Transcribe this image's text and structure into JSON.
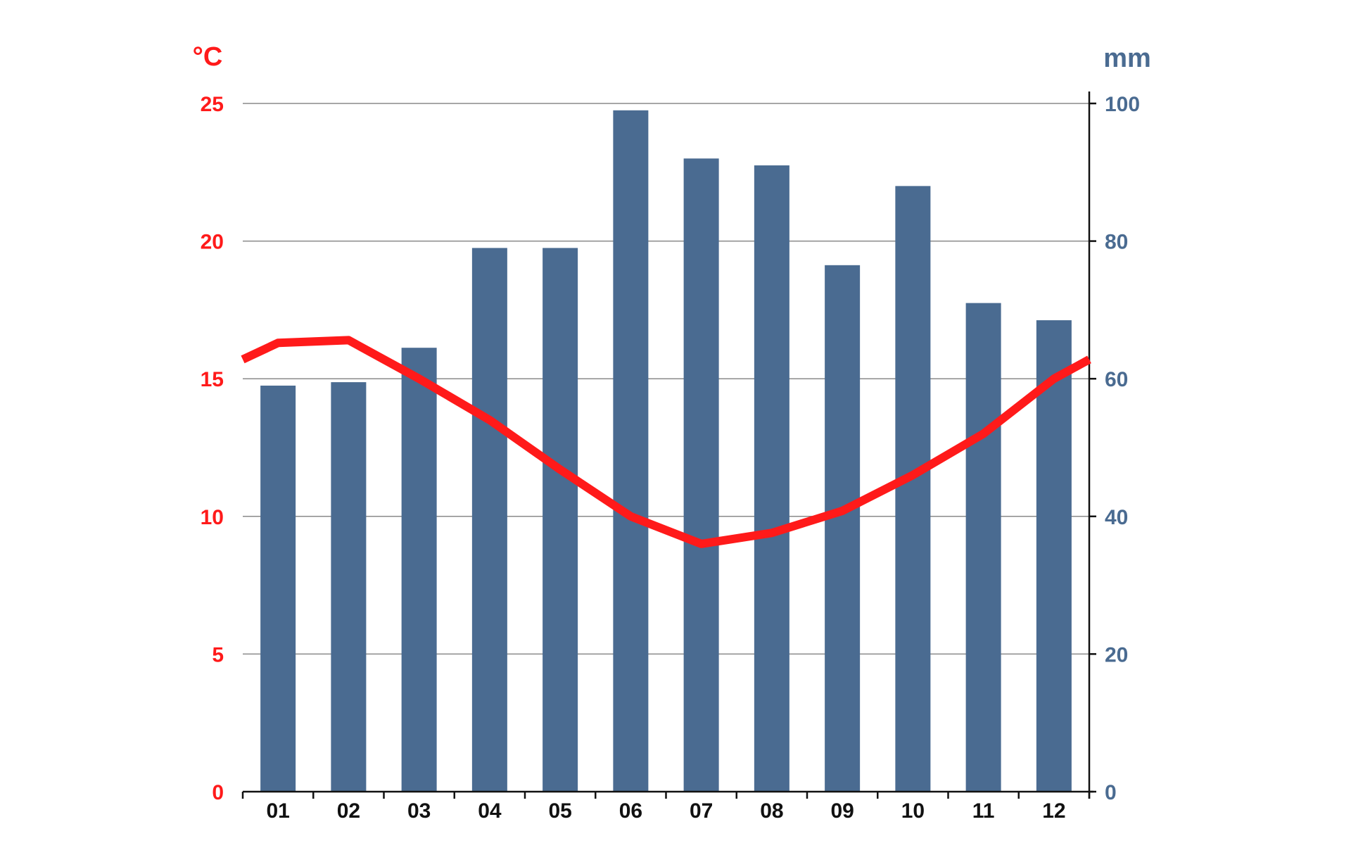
{
  "chart_data": {
    "type": "bar+line",
    "categories": [
      "01",
      "02",
      "03",
      "04",
      "05",
      "06",
      "07",
      "08",
      "09",
      "10",
      "11",
      "12"
    ],
    "series": [
      {
        "type": "bar",
        "axis": "right",
        "values": [
          59,
          59.5,
          64.5,
          79,
          79,
          99,
          92,
          91,
          76.5,
          88,
          71,
          68.5
        ],
        "color": "#4a6b91"
      },
      {
        "type": "line",
        "axis": "left",
        "values": [
          16.3,
          16.4,
          15.0,
          13.5,
          11.7,
          10.0,
          9.0,
          9.4,
          10.2,
          11.5,
          13.0,
          15.0
        ],
        "start_value": 15.7,
        "end_value": 15.7,
        "color": "#ff1a1a"
      }
    ],
    "y_left": {
      "label": "°C",
      "ticks": [
        "0",
        "5",
        "10",
        "15",
        "20",
        "25"
      ],
      "range": [
        0,
        25
      ],
      "color": "#ff1a1a"
    },
    "y_right": {
      "label": "mm",
      "ticks": [
        "0",
        "20",
        "40",
        "60",
        "80",
        "100"
      ],
      "range": [
        0,
        100
      ],
      "color": "#4a6b91"
    },
    "grid": true,
    "legend": "none"
  }
}
